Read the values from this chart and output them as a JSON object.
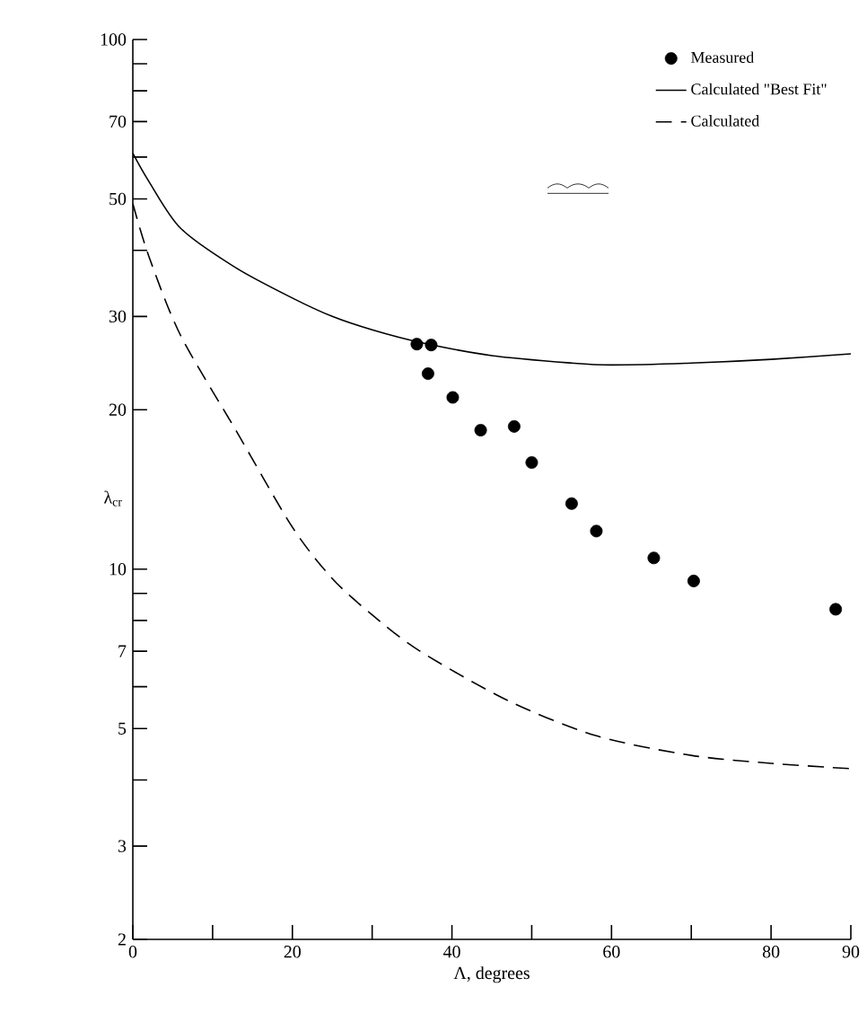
{
  "chart_data": {
    "type": "line",
    "xlabel": "Λ, degrees",
    "ylabel": "λ$_{cr}$",
    "log": "y",
    "xlim": [
      0,
      90
    ],
    "ylim": [
      2,
      100
    ],
    "xticks": [
      0,
      {
        "value": 10,
        "label": null
      },
      20,
      {
        "value": 30,
        "label": null
      },
      40,
      {
        "value": 50,
        "label": null
      },
      60,
      {
        "value": 70,
        "label": null
      },
      80,
      90
    ],
    "yticks": [
      2,
      3,
      {
        "value": 4,
        "label": null
      },
      5,
      {
        "value": 6,
        "label": null
      },
      7,
      {
        "value": 8,
        "label": null
      },
      {
        "value": 9,
        "label": null
      },
      10,
      20,
      30,
      {
        "value": 40,
        "label": null
      },
      50,
      {
        "value": 60,
        "label": null
      },
      70,
      {
        "value": 80,
        "label": null
      },
      {
        "value": 90,
        "label": null
      },
      100
    ],
    "legend": "top right",
    "grid": false,
    "series": [
      {
        "name": "Measured",
        "type": "scatter",
        "marker": "circle",
        "color": "#000000",
        "x": [
          35.6,
          37.4,
          37.0,
          40.1,
          43.6,
          47.8,
          50.0,
          55.0,
          58.1,
          65.3,
          70.3,
          88.1
        ],
        "values": [
          26.6,
          26.5,
          23.4,
          21.1,
          18.3,
          18.6,
          15.9,
          13.3,
          11.8,
          10.5,
          9.5,
          8.4
        ]
      },
      {
        "name": "Calculated \"Best Fit\"",
        "marker": "none",
        "line_style": "solid",
        "color": "#000000",
        "x": [
          0,
          2,
          6,
          13,
          20,
          25,
          30,
          36,
          45,
          55,
          60,
          70,
          80,
          90
        ],
        "values": [
          61,
          54,
          44,
          37,
          32.5,
          30,
          28.3,
          26.8,
          25.3,
          24.5,
          24.3,
          24.5,
          24.9,
          25.5
        ]
      },
      {
        "name": "Calculated",
        "marker": "none",
        "line_style": "dashed",
        "color": "#000000",
        "x": [
          0,
          2,
          6,
          13,
          20,
          25,
          30,
          36,
          47,
          58,
          70,
          80,
          90
        ],
        "values": [
          49,
          39,
          27.6,
          18.2,
          12,
          9.6,
          8.2,
          7,
          5.65,
          4.85,
          4.45,
          4.3,
          4.2
        ]
      }
    ]
  }
}
